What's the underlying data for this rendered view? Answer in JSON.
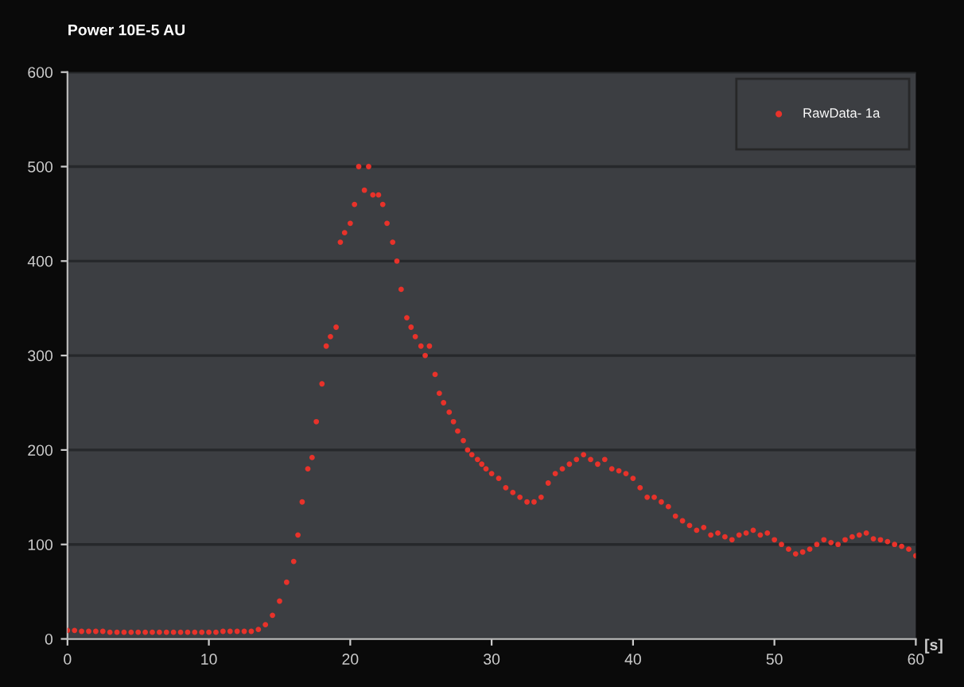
{
  "chart_data": {
    "type": "scatter",
    "title": "Power 10E-5 AU",
    "xlabel": "[s]",
    "xlim": [
      0,
      60
    ],
    "xticks": [
      0,
      10,
      20,
      30,
      40,
      50,
      60
    ],
    "ylim": [
      0,
      600
    ],
    "yticks": [
      0,
      100,
      200,
      300,
      400,
      500,
      600
    ],
    "grid": "y",
    "legend": "top right",
    "marker": "circle",
    "series": [
      {
        "name": "RawData- 1a",
        "color": "#e8322a",
        "x": [
          0,
          0.5,
          1,
          1.5,
          2,
          2.5,
          3,
          3.5,
          4,
          4.5,
          5,
          5.5,
          6,
          6.5,
          7,
          7.5,
          8,
          8.5,
          9,
          9.5,
          10,
          10.5,
          11,
          11.5,
          12,
          12.5,
          13,
          13.5,
          14,
          14.5,
          15,
          15.5,
          16,
          16.3,
          16.6,
          17,
          17.3,
          17.6,
          18,
          18.3,
          18.6,
          19,
          19.3,
          19.6,
          20,
          20.3,
          20.6,
          21,
          21.3,
          21.6,
          22,
          22.3,
          22.6,
          23,
          23.3,
          23.6,
          24,
          24.3,
          24.6,
          25,
          25.3,
          25.6,
          26,
          26.3,
          26.6,
          27,
          27.3,
          27.6,
          28,
          28.3,
          28.6,
          29,
          29.3,
          29.6,
          30,
          30.5,
          31,
          31.5,
          32,
          32.5,
          33,
          33.5,
          34,
          34.5,
          35,
          35.5,
          36,
          36.5,
          37,
          37.5,
          38,
          38.5,
          39,
          39.5,
          40,
          40.5,
          41,
          41.5,
          42,
          42.5,
          43,
          43.5,
          44,
          44.5,
          45,
          45.5,
          46,
          46.5,
          47,
          47.5,
          48,
          48.5,
          49,
          49.5,
          50,
          50.5,
          51,
          51.5,
          52,
          52.5,
          53,
          53.5,
          54,
          54.5,
          55,
          55.5,
          56,
          56.5,
          57,
          57.5,
          58,
          58.5,
          59,
          59.5,
          60
        ],
        "values": [
          9,
          9,
          8,
          8,
          8,
          8,
          7,
          7,
          7,
          7,
          7,
          7,
          7,
          7,
          7,
          7,
          7,
          7,
          7,
          7,
          7,
          7,
          8,
          8,
          8,
          8,
          8,
          10,
          15,
          25,
          40,
          60,
          82,
          110,
          145,
          180,
          192,
          230,
          270,
          310,
          320,
          330,
          420,
          430,
          440,
          460,
          500,
          475,
          500,
          470,
          470,
          460,
          440,
          420,
          400,
          370,
          340,
          330,
          320,
          310,
          300,
          310,
          280,
          260,
          250,
          240,
          230,
          220,
          210,
          200,
          195,
          190,
          185,
          180,
          175,
          170,
          160,
          155,
          150,
          145,
          145,
          150,
          165,
          175,
          180,
          185,
          190,
          195,
          190,
          185,
          190,
          180,
          178,
          175,
          170,
          160,
          150,
          150,
          145,
          140,
          130,
          125,
          120,
          115,
          118,
          110,
          112,
          108,
          105,
          110,
          112,
          115,
          110,
          112,
          105,
          100,
          95,
          90,
          92,
          95,
          100,
          105,
          102,
          100,
          105,
          108,
          110,
          112,
          106,
          105,
          103,
          100,
          98,
          95,
          88
        ]
      }
    ]
  }
}
